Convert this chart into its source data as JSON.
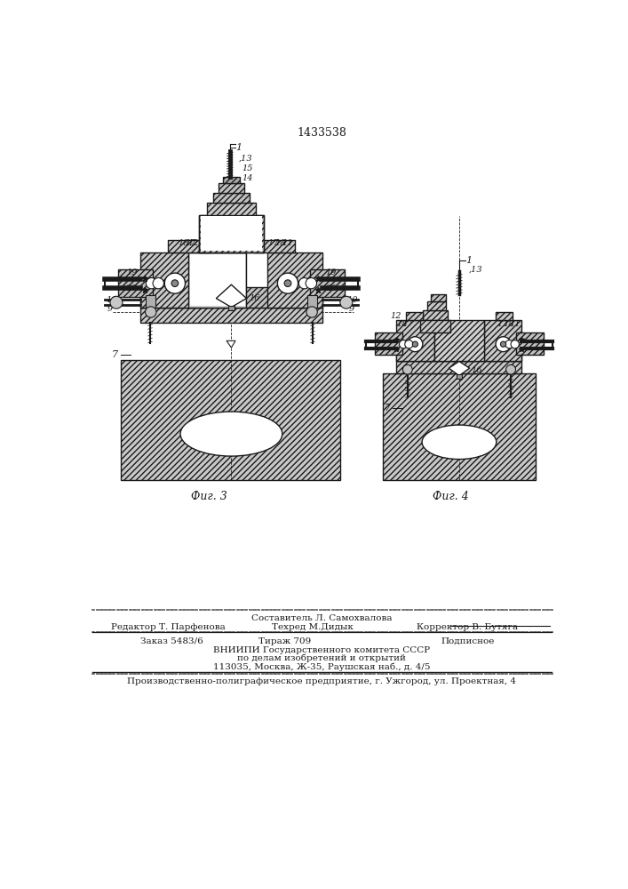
{
  "patent_number": "1433538",
  "fig3_label": "Фиг. 3",
  "fig4_label": "Фиг. 4",
  "bottom_text_sostavitel": "Составитель Л. Самохвалова",
  "bottom_text_editor": "Редактор Т. Парфенова",
  "bottom_text_techred": "Техред М.Дидык",
  "bottom_text_corrector": "Корректор В. Бутяга",
  "bottom_text_order": "Заказ 5483/6",
  "bottom_text_tirazh": "Тираж 709",
  "bottom_text_podpisnoe": "Подписное",
  "bottom_text_vniipи": "ВНИИПИ Государственного комитета СССР",
  "bottom_text_dela": "по делам изобретений и открытий",
  "bottom_text_address": "113035, Москва, Ж-35, Раушская наб., д. 4/5",
  "bottom_text_factory": "Производственно-полиграфическое предприятие, г. Ужгород, ул. Проектная, 4",
  "lc": "#1a1a1a",
  "hc": "#888888"
}
